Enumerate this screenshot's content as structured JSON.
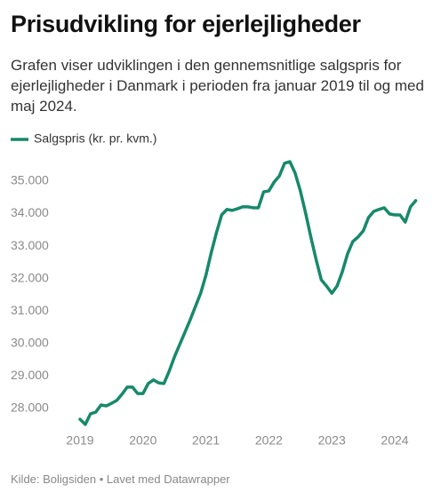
{
  "chart_data": {
    "type": "line",
    "title": "Prisudvikling for ejerlejligheder",
    "subtitle": "Grafen viser udviklingen i den gennemsnitlige salgspris for ejerlejligheder i Danmark i perioden fra januar 2019 til og med maj 2024.",
    "source": "Kilde: Boligsiden • Lavet med Datawrapper",
    "categories": [
      "2019",
      null,
      null,
      null,
      null,
      null,
      null,
      null,
      null,
      null,
      null,
      null,
      "2020",
      null,
      null,
      null,
      null,
      null,
      null,
      null,
      null,
      null,
      null,
      null,
      "2021",
      null,
      null,
      null,
      null,
      null,
      null,
      null,
      null,
      null,
      null,
      null,
      "2022",
      null,
      null,
      null,
      null,
      null,
      null,
      null,
      null,
      null,
      null,
      null,
      "2023",
      null,
      null,
      null,
      null,
      null,
      null,
      null,
      null,
      null,
      null,
      null,
      "2024",
      null,
      null,
      null,
      null
    ],
    "series": [
      {
        "name": "Salgspris (kr. pr. kvm.)",
        "color": "#17896b",
        "values": [
          27670,
          27510,
          27840,
          27890,
          28110,
          28080,
          28160,
          28250,
          28440,
          28660,
          28660,
          28460,
          28460,
          28770,
          28880,
          28790,
          28770,
          29150,
          29590,
          29970,
          30350,
          30730,
          31140,
          31550,
          32100,
          32790,
          33410,
          33960,
          34130,
          34100,
          34150,
          34210,
          34210,
          34180,
          34180,
          34670,
          34700,
          34970,
          35160,
          35550,
          35600,
          35250,
          34700,
          34020,
          33280,
          32590,
          31960,
          31770,
          31550,
          31770,
          32210,
          32760,
          33140,
          33280,
          33470,
          33880,
          34070,
          34130,
          34180,
          33990,
          33960,
          33960,
          33740,
          34210,
          34400
        ]
      }
    ],
    "ylim": [
      27500,
      35800
    ],
    "yticks": [
      {
        "value": 28000,
        "label": "28.000"
      },
      {
        "value": 29000,
        "label": "29.000"
      },
      {
        "value": 30000,
        "label": "30.000"
      },
      {
        "value": 31000,
        "label": "31.000"
      },
      {
        "value": 32000,
        "label": "32.000"
      },
      {
        "value": 33000,
        "label": "33.000"
      },
      {
        "value": 34000,
        "label": "34.000"
      },
      {
        "value": 35000,
        "label": "35.000"
      }
    ],
    "grid": false
  }
}
